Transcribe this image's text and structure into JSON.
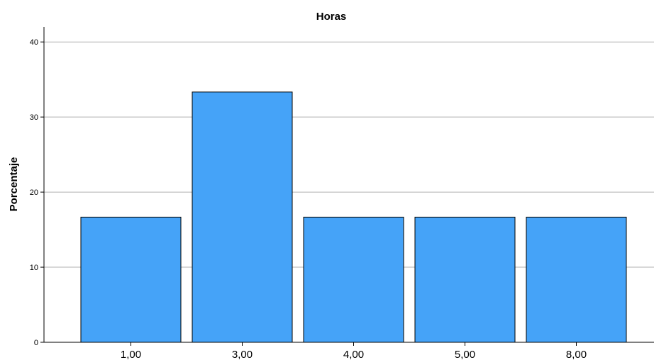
{
  "chart_data": {
    "type": "bar",
    "title": "Horas",
    "xlabel": "",
    "ylabel": "Porcentaje",
    "categories": [
      "1,00",
      "3,00",
      "4,00",
      "5,00",
      "8,00"
    ],
    "values": [
      16.67,
      33.33,
      16.67,
      16.67,
      16.67
    ],
    "ylim": [
      0,
      42
    ],
    "yticks": [
      0,
      10,
      20,
      30,
      40
    ],
    "grid": true,
    "bar_color": "#45a3f8"
  }
}
